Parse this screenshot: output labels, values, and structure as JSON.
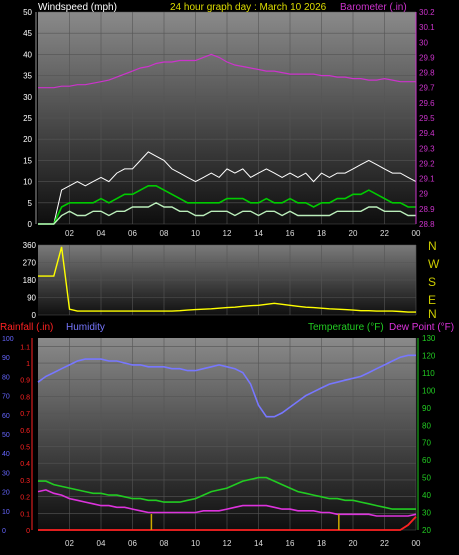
{
  "colors": {
    "wind": "#ffffff",
    "gust": "#ffffff",
    "avg": "#00cc00",
    "baro": "#cc33cc",
    "dir": "#ffff00",
    "hum": "#7777ff",
    "temp": "#22cc22",
    "dew": "#dd33dd",
    "rain": "#ff2222",
    "rainbar": "#ccaa00",
    "hum_axis": "#6666ff",
    "temp_axis": "#22cc22",
    "dew_axis": "#dd33dd"
  },
  "header": {
    "wind_label": "Windspeed (mph)",
    "title": "24 hour graph day : March 10 2026",
    "baro_label": "Barometer (.in)"
  },
  "lower_header": {
    "rain_label": "Rainfall (.in)",
    "humidity_label": "Humidity",
    "temp_label": "Temperature (°F)",
    "dew_label": "Dew Point (°F)"
  },
  "x_ticks": [
    "02",
    "04",
    "06",
    "08",
    "10",
    "12",
    "14",
    "16",
    "18",
    "20",
    "22",
    "00"
  ],
  "compass": [
    "N",
    "W",
    "S",
    "E",
    "N"
  ],
  "chart_data": [
    {
      "type": "line",
      "title": "24 hour graph day : March 10 2026",
      "x": [
        0,
        0.5,
        1,
        1.5,
        2,
        2.5,
        3,
        3.5,
        4,
        4.5,
        5,
        5.5,
        6,
        6.5,
        7,
        7.5,
        8,
        8.5,
        9,
        9.5,
        10,
        10.5,
        11,
        11.5,
        12,
        12.5,
        13,
        13.5,
        14,
        14.5,
        15,
        15.5,
        16,
        16.5,
        17,
        17.5,
        18,
        18.5,
        19,
        19.5,
        20,
        20.5,
        21,
        21.5,
        22,
        22.5,
        23,
        23.5,
        24
      ],
      "left_axis": {
        "label": "Windspeed (mph)",
        "ylim": [
          0,
          50
        ],
        "ticks": [
          0,
          5,
          10,
          15,
          20,
          25,
          30,
          35,
          40,
          45,
          50
        ]
      },
      "right_axis": {
        "label": "Barometer (.in)",
        "ylim": [
          28.8,
          30.2
        ],
        "ticks": [
          "28.8",
          "28.9",
          "29",
          "29.1",
          "29.2",
          "29.3",
          "29.4",
          "29.5",
          "29.6",
          "29.7",
          "29.8",
          "29.9",
          "30",
          "30.1",
          "30.2"
        ]
      },
      "series": [
        {
          "axis": "left",
          "values": [
            0,
            0,
            0,
            8,
            9,
            10,
            9,
            10,
            11,
            10,
            12,
            13,
            13,
            15,
            17,
            16,
            15,
            13,
            12,
            11,
            10,
            11,
            12,
            11,
            13,
            12,
            13,
            11,
            12,
            13,
            12,
            11,
            12,
            11,
            12,
            10,
            12,
            11,
            12,
            12,
            13,
            14,
            15,
            14,
            13,
            12,
            12,
            11,
            10
          ]
        },
        {
          "axis": "left",
          "values": [
            0,
            0,
            0,
            4,
            5,
            5,
            5,
            5,
            6,
            5,
            6,
            7,
            7,
            8,
            9,
            9,
            8,
            7,
            6,
            5,
            5,
            5,
            5,
            5,
            6,
            6,
            6,
            5,
            5,
            6,
            5,
            5,
            6,
            5,
            5,
            4,
            5,
            5,
            6,
            6,
            7,
            7,
            8,
            7,
            6,
            5,
            5,
            4,
            4
          ]
        },
        {
          "axis": "left",
          "values": [
            0,
            0,
            0,
            2,
            3,
            2,
            2,
            3,
            3,
            2,
            3,
            3,
            4,
            4,
            4,
            5,
            4,
            4,
            3,
            3,
            2,
            2,
            3,
            3,
            3,
            2,
            3,
            3,
            2,
            3,
            3,
            2,
            3,
            2,
            2,
            2,
            2,
            2,
            3,
            3,
            3,
            3,
            4,
            4,
            3,
            3,
            3,
            2,
            2
          ]
        },
        {
          "axis": "right",
          "values": [
            29.7,
            29.7,
            29.7,
            29.71,
            29.71,
            29.72,
            29.72,
            29.73,
            29.74,
            29.75,
            29.77,
            29.79,
            29.81,
            29.83,
            29.84,
            29.86,
            29.87,
            29.87,
            29.88,
            29.88,
            29.88,
            29.9,
            29.92,
            29.9,
            29.87,
            29.85,
            29.84,
            29.83,
            29.82,
            29.81,
            29.81,
            29.8,
            29.79,
            29.79,
            29.79,
            29.79,
            29.78,
            29.78,
            29.77,
            29.77,
            29.76,
            29.76,
            29.75,
            29.75,
            29.76,
            29.75,
            29.74,
            29.74,
            29.74
          ]
        }
      ]
    },
    {
      "type": "line",
      "title": "",
      "x": [
        0,
        0.5,
        1,
        1.5,
        2,
        2.5,
        3,
        3.5,
        4,
        4.5,
        5,
        5.5,
        6,
        6.5,
        7,
        7.5,
        8,
        8.5,
        9,
        9.5,
        10,
        10.5,
        11,
        11.5,
        12,
        12.5,
        13,
        13.5,
        14,
        14.5,
        15,
        15.5,
        16,
        16.5,
        17,
        17.5,
        18,
        18.5,
        19,
        19.5,
        20,
        20.5,
        21,
        21.5,
        22,
        22.5,
        23,
        23.5,
        24
      ],
      "left_axis": {
        "label": "",
        "ylim": [
          0,
          360
        ],
        "ticks": [
          0,
          90,
          180,
          270,
          360
        ]
      },
      "series": [
        {
          "axis": "left",
          "values": [
            200,
            200,
            200,
            350,
            30,
            20,
            20,
            20,
            20,
            20,
            20,
            20,
            20,
            20,
            20,
            20,
            20,
            20,
            22,
            25,
            28,
            30,
            32,
            35,
            38,
            40,
            45,
            48,
            50,
            55,
            60,
            55,
            50,
            45,
            40,
            38,
            35,
            32,
            30,
            28,
            25,
            22,
            22,
            20,
            20,
            20,
            18,
            15,
            15
          ]
        }
      ]
    },
    {
      "type": "line",
      "title": "",
      "x": [
        0,
        0.5,
        1,
        1.5,
        2,
        2.5,
        3,
        3.5,
        4,
        4.5,
        5,
        5.5,
        6,
        6.5,
        7,
        7.5,
        8,
        8.5,
        9,
        9.5,
        10,
        10.5,
        11,
        11.5,
        12,
        12.5,
        13,
        13.5,
        14,
        14.5,
        15,
        15.5,
        16,
        16.5,
        17,
        17.5,
        18,
        18.5,
        19,
        19.5,
        20,
        20.5,
        21,
        21.5,
        22,
        22.5,
        23,
        23.5,
        24
      ],
      "left_axis": {
        "label": "Rainfall (.in)",
        "ylim": [
          0,
          1.15
        ],
        "ticks": [
          "0",
          "0.1",
          "0.2",
          "0.3",
          "0.4",
          "0.5",
          "0.6",
          "0.7",
          "0.8",
          "0.9",
          "1",
          "1.1"
        ]
      },
      "humidity_axis": {
        "label": "Humidity",
        "ylim": [
          0,
          100
        ],
        "ticks": [
          0,
          10,
          20,
          30,
          40,
          50,
          60,
          70,
          80,
          90,
          100
        ]
      },
      "right_axis": {
        "label": "Temperature (°F)",
        "ylim": [
          20,
          130
        ],
        "ticks": [
          20,
          30,
          40,
          50,
          60,
          70,
          80,
          90,
          100,
          110,
          120,
          130
        ]
      },
      "series": [
        {
          "axis": "humidity",
          "values": [
            77,
            80,
            82,
            84,
            86,
            88,
            89,
            89,
            89,
            88,
            88,
            87,
            86,
            86,
            85,
            85,
            85,
            84,
            84,
            83,
            83,
            84,
            85,
            86,
            85,
            84,
            82,
            76,
            65,
            59,
            59,
            61,
            64,
            67,
            70,
            72,
            74,
            76,
            77,
            78,
            79,
            80,
            82,
            84,
            86,
            88,
            90,
            91,
            91
          ]
        },
        {
          "axis": "right",
          "values": [
            48,
            48,
            46,
            45,
            44,
            43,
            42,
            41,
            41,
            40,
            40,
            39,
            38,
            38,
            37,
            37,
            36,
            36,
            36,
            37,
            38,
            40,
            42,
            43,
            44,
            46,
            48,
            49,
            50,
            50,
            48,
            46,
            44,
            42,
            41,
            40,
            39,
            38,
            38,
            37,
            37,
            36,
            35,
            34,
            33,
            32,
            32,
            32,
            32
          ]
        },
        {
          "axis": "right",
          "values": [
            42,
            43,
            41,
            40,
            38,
            37,
            36,
            35,
            34,
            34,
            33,
            33,
            32,
            31,
            30,
            30,
            30,
            30,
            30,
            30,
            30,
            31,
            31,
            31,
            32,
            33,
            34,
            34,
            34,
            34,
            33,
            32,
            32,
            31,
            31,
            31,
            30,
            30,
            29,
            29,
            29,
            29,
            29,
            28,
            28,
            28,
            28,
            28,
            29
          ]
        },
        {
          "axis": "left",
          "values": [
            0,
            0,
            0,
            0,
            0,
            0,
            0,
            0,
            0,
            0,
            0,
            0,
            0,
            0,
            0,
            0,
            0,
            0,
            0,
            0,
            0,
            0,
            0,
            0,
            0,
            0,
            0,
            0,
            0,
            0,
            0,
            0,
            0,
            0,
            0,
            0,
            0,
            0,
            0,
            0,
            0,
            0,
            0,
            0,
            0,
            0,
            0,
            0.03,
            0.08
          ]
        }
      ]
    }
  ]
}
